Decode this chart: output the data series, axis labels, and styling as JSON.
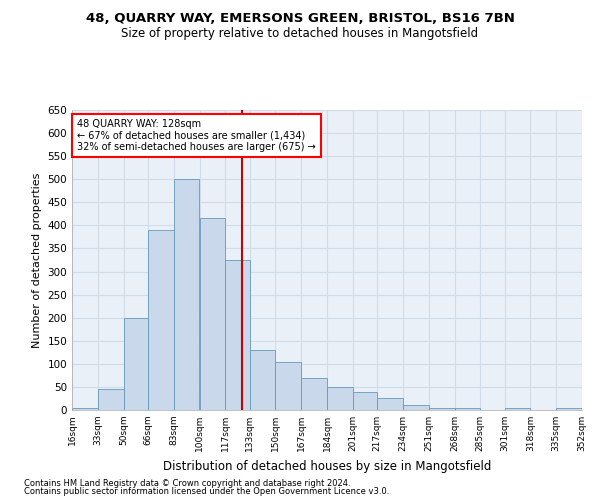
{
  "title1": "48, QUARRY WAY, EMERSONS GREEN, BRISTOL, BS16 7BN",
  "title2": "Size of property relative to detached houses in Mangotsfield",
  "xlabel": "Distribution of detached houses by size in Mangotsfield",
  "ylabel": "Number of detached properties",
  "vline_x": 128,
  "annotation_text": "48 QUARRY WAY: 128sqm\n← 67% of detached houses are smaller (1,434)\n32% of semi-detached houses are larger (675) →",
  "footnote1": "Contains HM Land Registry data © Crown copyright and database right 2024.",
  "footnote2": "Contains public sector information licensed under the Open Government Licence v3.0.",
  "bin_edges": [
    16,
    33,
    50,
    66,
    83,
    100,
    117,
    133,
    150,
    167,
    184,
    201,
    217,
    234,
    251,
    268,
    285,
    301,
    318,
    335,
    352
  ],
  "bar_heights": [
    5,
    45,
    200,
    390,
    500,
    415,
    325,
    130,
    105,
    70,
    50,
    40,
    25,
    10,
    5,
    5,
    0,
    5,
    0,
    5
  ],
  "bar_color": "#c9d9eb",
  "bar_edge_color": "#6699bb",
  "vline_color": "#cc0000",
  "background_color": "#eaf0f7",
  "grid_color": "#d0dce8",
  "ylim": [
    0,
    650
  ],
  "yticks": [
    0,
    50,
    100,
    150,
    200,
    250,
    300,
    350,
    400,
    450,
    500,
    550,
    600,
    650
  ]
}
